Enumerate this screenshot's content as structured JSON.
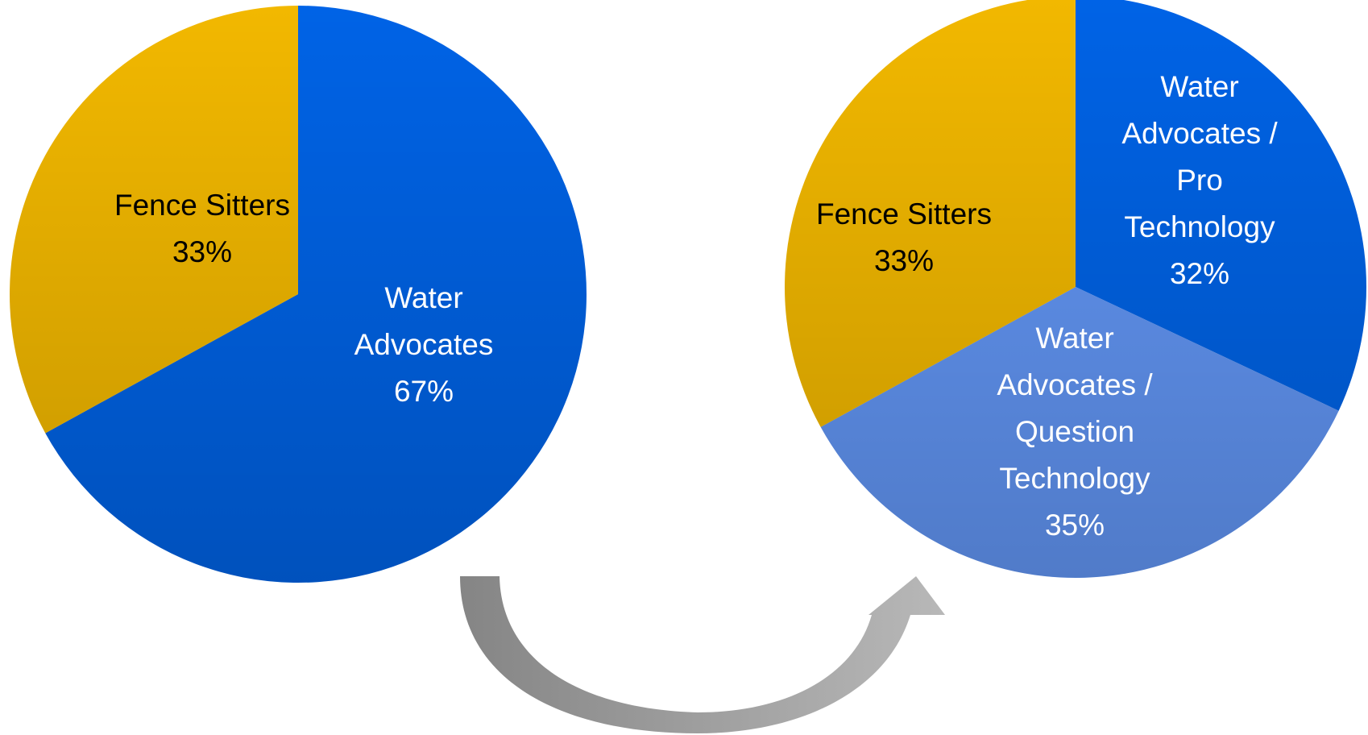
{
  "chart_data": [
    {
      "type": "pie",
      "categories": [
        "Water Advocates",
        "Fence Sitters"
      ],
      "values": [
        67,
        33
      ],
      "value_labels": [
        "67%",
        "33%"
      ],
      "colors": [
        "#0063E6",
        "#F2B800"
      ],
      "label_colors": [
        "#ffffff",
        "#000000"
      ]
    },
    {
      "type": "pie",
      "categories": [
        "Water Advocates / Pro Technology",
        "Water Advocates / Question Technology",
        "Fence Sitters"
      ],
      "values": [
        32,
        35,
        33
      ],
      "value_labels": [
        "32%",
        "35%",
        "33%"
      ],
      "colors": [
        "#0063E6",
        "#6296F5",
        "#F2B800"
      ],
      "label_colors": [
        "#ffffff",
        "#ffffff",
        "#000000"
      ]
    }
  ]
}
